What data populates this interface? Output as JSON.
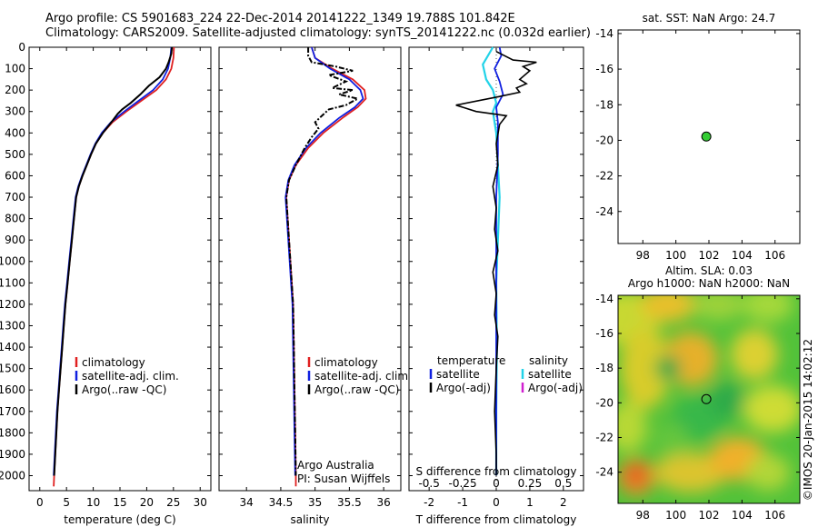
{
  "header": {
    "title_line1": "Argo profile: CS 5901683_224 22-Dec-2014 20141222_1349 19.788S 101.842E",
    "title_line2": "Climatology: CARS2009. Satellite-adjusted climatology: synTS_20141222.nc (0.032d earlier)",
    "sst_label": "sat. SST: NaN Argo: 24.7",
    "sla_label_line1": "Altim. SLA: 0.03",
    "sla_label_line2": "Argo h1000: NaN h2000: NaN",
    "credit": "©IMOS 20-Jan-2015 14:02:12"
  },
  "colors": {
    "climatology": "#e02020",
    "satellite_adj": "#1020e0",
    "argo": "#000000",
    "salinity_sat": "#22d3e8",
    "salinity_argo": "#d020d0",
    "dot": "#33cc33"
  },
  "chart_data": [
    {
      "type": "line",
      "xlabel": "temperature (deg C)",
      "ylabel": "",
      "xlim": [
        -2,
        32
      ],
      "ylim": [
        2070,
        0
      ],
      "xticks": [
        0,
        5,
        10,
        15,
        20,
        25,
        30
      ],
      "yticks": [
        0,
        100,
        200,
        300,
        400,
        500,
        600,
        700,
        800,
        900,
        1000,
        1100,
        1200,
        1300,
        1400,
        1500,
        1600,
        1700,
        1800,
        1900,
        2000
      ],
      "legend": [
        "climatology",
        "satellite-adj. clim.",
        "Argo(..raw -QC)"
      ],
      "series": [
        {
          "name": "climatology",
          "color": "#e02020",
          "points": [
            [
              25.1,
              0
            ],
            [
              25.0,
              50
            ],
            [
              24.6,
              100
            ],
            [
              23.6,
              150
            ],
            [
              21.8,
              200
            ],
            [
              19.0,
              250
            ],
            [
              16.2,
              300
            ],
            [
              13.6,
              350
            ],
            [
              11.8,
              400
            ],
            [
              10.5,
              450
            ],
            [
              9.6,
              500
            ],
            [
              8.8,
              550
            ],
            [
              8.0,
              600
            ],
            [
              7.3,
              650
            ],
            [
              6.8,
              700
            ],
            [
              6.4,
              800
            ],
            [
              6.0,
              900
            ],
            [
              5.6,
              1000
            ],
            [
              5.2,
              1100
            ],
            [
              4.8,
              1200
            ],
            [
              4.5,
              1300
            ],
            [
              4.2,
              1400
            ],
            [
              3.9,
              1500
            ],
            [
              3.6,
              1600
            ],
            [
              3.3,
              1700
            ],
            [
              3.1,
              1800
            ],
            [
              2.9,
              1900
            ],
            [
              2.7,
              2000
            ],
            [
              2.6,
              2050
            ]
          ]
        },
        {
          "name": "satellite-adj. clim.",
          "color": "#1020e0",
          "points": [
            [
              24.6,
              0
            ],
            [
              24.4,
              50
            ],
            [
              24.0,
              100
            ],
            [
              23.0,
              150
            ],
            [
              21.2,
              200
            ],
            [
              18.5,
              250
            ],
            [
              15.8,
              300
            ],
            [
              13.3,
              350
            ],
            [
              11.6,
              400
            ],
            [
              10.4,
              450
            ],
            [
              9.5,
              500
            ],
            [
              8.7,
              550
            ],
            [
              7.9,
              600
            ],
            [
              7.2,
              650
            ],
            [
              6.7,
              700
            ],
            [
              6.3,
              800
            ],
            [
              5.9,
              900
            ],
            [
              5.5,
              1000
            ],
            [
              5.1,
              1100
            ],
            [
              4.7,
              1200
            ],
            [
              4.4,
              1300
            ],
            [
              4.1,
              1400
            ],
            [
              3.8,
              1500
            ],
            [
              3.5,
              1600
            ],
            [
              3.2,
              1700
            ],
            [
              3.0,
              1800
            ],
            [
              2.8,
              1900
            ],
            [
              2.6,
              2000
            ]
          ]
        },
        {
          "name": "Argo(..raw -QC)",
          "color": "#000000",
          "points": [
            [
              24.7,
              0
            ],
            [
              24.6,
              30
            ],
            [
              24.1,
              70
            ],
            [
              23.6,
              100
            ],
            [
              22.4,
              140
            ],
            [
              20.4,
              180
            ],
            [
              18.8,
              220
            ],
            [
              17.0,
              260
            ],
            [
              15.4,
              290
            ],
            [
              14.6,
              310
            ],
            [
              13.4,
              350
            ],
            [
              11.8,
              400
            ],
            [
              10.5,
              450
            ],
            [
              9.6,
              500
            ],
            [
              8.8,
              550
            ],
            [
              8.0,
              600
            ],
            [
              7.3,
              650
            ],
            [
              6.8,
              700
            ],
            [
              6.4,
              800
            ],
            [
              6.0,
              900
            ],
            [
              5.6,
              1000
            ],
            [
              5.2,
              1100
            ],
            [
              4.8,
              1200
            ],
            [
              4.5,
              1300
            ],
            [
              4.2,
              1400
            ],
            [
              3.9,
              1500
            ],
            [
              3.6,
              1600
            ],
            [
              3.3,
              1700
            ],
            [
              3.1,
              1800
            ],
            [
              2.9,
              1900
            ],
            [
              2.7,
              2000
            ]
          ]
        }
      ]
    },
    {
      "type": "line",
      "xlabel": "salinity",
      "ylabel": "",
      "xlim": [
        33.6,
        36.25
      ],
      "ylim": [
        2070,
        0
      ],
      "xticks": [
        34,
        34.5,
        35,
        35.5,
        36
      ],
      "legend": [
        "climatology",
        "satellite-adj. clim.",
        "Argo(..raw -QC)"
      ],
      "annotation_line1": "Argo Australia",
      "annotation_line2": "PI: Susan Wijffels",
      "series": [
        {
          "name": "climatology",
          "color": "#e02020",
          "points": [
            [
              34.95,
              0
            ],
            [
              35.0,
              50
            ],
            [
              35.25,
              100
            ],
            [
              35.55,
              150
            ],
            [
              35.72,
              200
            ],
            [
              35.74,
              240
            ],
            [
              35.62,
              280
            ],
            [
              35.4,
              330
            ],
            [
              35.12,
              400
            ],
            [
              34.9,
              470
            ],
            [
              34.72,
              550
            ],
            [
              34.62,
              620
            ],
            [
              34.58,
              700
            ],
            [
              34.6,
              800
            ],
            [
              34.62,
              900
            ],
            [
              34.64,
              1000
            ],
            [
              34.66,
              1100
            ],
            [
              34.68,
              1200
            ],
            [
              34.69,
              1400
            ],
            [
              34.7,
              1600
            ],
            [
              34.71,
              1800
            ],
            [
              34.72,
              2000
            ],
            [
              34.72,
              2050
            ]
          ]
        },
        {
          "name": "satellite-adj. clim.",
          "color": "#1020e0",
          "points": [
            [
              34.95,
              0
            ],
            [
              35.0,
              50
            ],
            [
              35.22,
              100
            ],
            [
              35.5,
              150
            ],
            [
              35.66,
              200
            ],
            [
              35.7,
              240
            ],
            [
              35.58,
              280
            ],
            [
              35.35,
              330
            ],
            [
              35.08,
              400
            ],
            [
              34.87,
              470
            ],
            [
              34.7,
              550
            ],
            [
              34.61,
              620
            ],
            [
              34.57,
              700
            ],
            [
              34.59,
              800
            ],
            [
              34.61,
              900
            ],
            [
              34.63,
              1000
            ],
            [
              34.65,
              1100
            ],
            [
              34.67,
              1200
            ],
            [
              34.68,
              1400
            ],
            [
              34.69,
              1600
            ],
            [
              34.7,
              1800
            ],
            [
              34.71,
              2000
            ]
          ]
        },
        {
          "name": "Argo(..raw -QC)",
          "color": "#000000",
          "points": [
            [
              34.9,
              0
            ],
            [
              34.9,
              40
            ],
            [
              34.95,
              70
            ],
            [
              35.3,
              90
            ],
            [
              35.55,
              110
            ],
            [
              35.2,
              130
            ],
            [
              35.45,
              160
            ],
            [
              35.25,
              190
            ],
            [
              35.55,
              200
            ],
            [
              35.35,
              220
            ],
            [
              35.62,
              240
            ],
            [
              35.45,
              270
            ],
            [
              35.2,
              290
            ],
            [
              35.1,
              320
            ],
            [
              35.0,
              350
            ],
            [
              35.05,
              380
            ],
            [
              34.95,
              420
            ],
            [
              34.85,
              470
            ],
            [
              34.72,
              550
            ],
            [
              34.62,
              620
            ],
            [
              34.58,
              700
            ],
            [
              34.6,
              800
            ],
            [
              34.62,
              900
            ],
            [
              34.64,
              1000
            ],
            [
              34.66,
              1100
            ],
            [
              34.68,
              1200
            ],
            [
              34.69,
              1400
            ],
            [
              34.7,
              1600
            ],
            [
              34.71,
              1800
            ],
            [
              34.72,
              2000
            ]
          ]
        }
      ]
    },
    {
      "type": "line",
      "xlabel": "T difference from climatology",
      "xlabel_top": "S difference from climatology",
      "xlim": [
        -2.6,
        2.6
      ],
      "ylim": [
        2070,
        0
      ],
      "xticks": [
        -2,
        -1,
        0,
        1,
        2
      ],
      "xticks_s": [
        "-0.5",
        "-0.25",
        "0",
        "0.25",
        "0.5"
      ],
      "legend_temperature_title": "temperature",
      "legend_salinity_title": "salinity",
      "legend_satellite": "satellite",
      "legend_argo": "Argo(-adj)",
      "series": [
        {
          "name": "temperature satellite",
          "color": "#1020e0",
          "points": [
            [
              0.1,
              0
            ],
            [
              0.15,
              40
            ],
            [
              -0.05,
              100
            ],
            [
              0.1,
              160
            ],
            [
              0.2,
              220
            ],
            [
              0.0,
              280
            ],
            [
              0.05,
              350
            ],
            [
              0.05,
              500
            ],
            [
              0.0,
              700
            ],
            [
              0.0,
              1000
            ],
            [
              0.0,
              1500
            ],
            [
              0.0,
              2000
            ]
          ]
        },
        {
          "name": "temperature Argo(-adj)",
          "color": "#000000",
          "points": [
            [
              0.0,
              20
            ],
            [
              0.5,
              60
            ],
            [
              1.2,
              70
            ],
            [
              0.8,
              90
            ],
            [
              1.0,
              110
            ],
            [
              0.7,
              150
            ],
            [
              0.9,
              170
            ],
            [
              0.6,
              190
            ],
            [
              0.7,
              210
            ],
            [
              0.1,
              230
            ],
            [
              -1.2,
              270
            ],
            [
              -0.6,
              300
            ],
            [
              0.3,
              320
            ],
            [
              0.1,
              360
            ],
            [
              0.0,
              450
            ],
            [
              0.05,
              550
            ],
            [
              -0.1,
              650
            ],
            [
              0.0,
              750
            ],
            [
              -0.05,
              850
            ],
            [
              0.05,
              950
            ],
            [
              -0.1,
              1050
            ],
            [
              0.0,
              1150
            ],
            [
              -0.05,
              1250
            ],
            [
              0.05,
              1350
            ],
            [
              0.0,
              1500
            ],
            [
              -0.05,
              1700
            ],
            [
              0.0,
              1900
            ],
            [
              0.0,
              2000
            ]
          ]
        },
        {
          "name": "salinity satellite",
          "color": "#22d3e8",
          "points": [
            [
              -0.1,
              0
            ],
            [
              -0.4,
              80
            ],
            [
              -0.3,
              150
            ],
            [
              -0.1,
              200
            ],
            [
              0.0,
              260
            ],
            [
              -0.1,
              300
            ],
            [
              0.0,
              400
            ],
            [
              0.05,
              550
            ],
            [
              0.1,
              700
            ],
            [
              0.05,
              900
            ],
            [
              0.0,
              1100
            ],
            [
              0.02,
              1400
            ],
            [
              0.0,
              1700
            ],
            [
              0.0,
              2000
            ]
          ]
        },
        {
          "name": "salinity Argo(-adj)",
          "color": "#d020d0",
          "points": []
        }
      ]
    },
    {
      "type": "scatter",
      "title": "sat. SST: NaN Argo: 24.7",
      "xlim": [
        96.5,
        107.5
      ],
      "ylim": [
        -25.8,
        -13.8
      ],
      "xticks": [
        98,
        100,
        102,
        104,
        106
      ],
      "yticks": [
        -14,
        -16,
        -18,
        -20,
        -22,
        -24
      ],
      "x": [
        101.842
      ],
      "y": [
        -19.788
      ]
    },
    {
      "type": "heatmap",
      "title": "Altim. SLA: 0.03  Argo h1000: NaN h2000: NaN",
      "xlim": [
        96.5,
        107.5
      ],
      "ylim": [
        -25.8,
        -13.8
      ],
      "xticks": [
        98,
        100,
        102,
        104,
        106
      ],
      "yticks": [
        -14,
        -16,
        -18,
        -20,
        -22,
        -24
      ],
      "marker": {
        "x": 101.842,
        "y": -19.788
      }
    }
  ]
}
